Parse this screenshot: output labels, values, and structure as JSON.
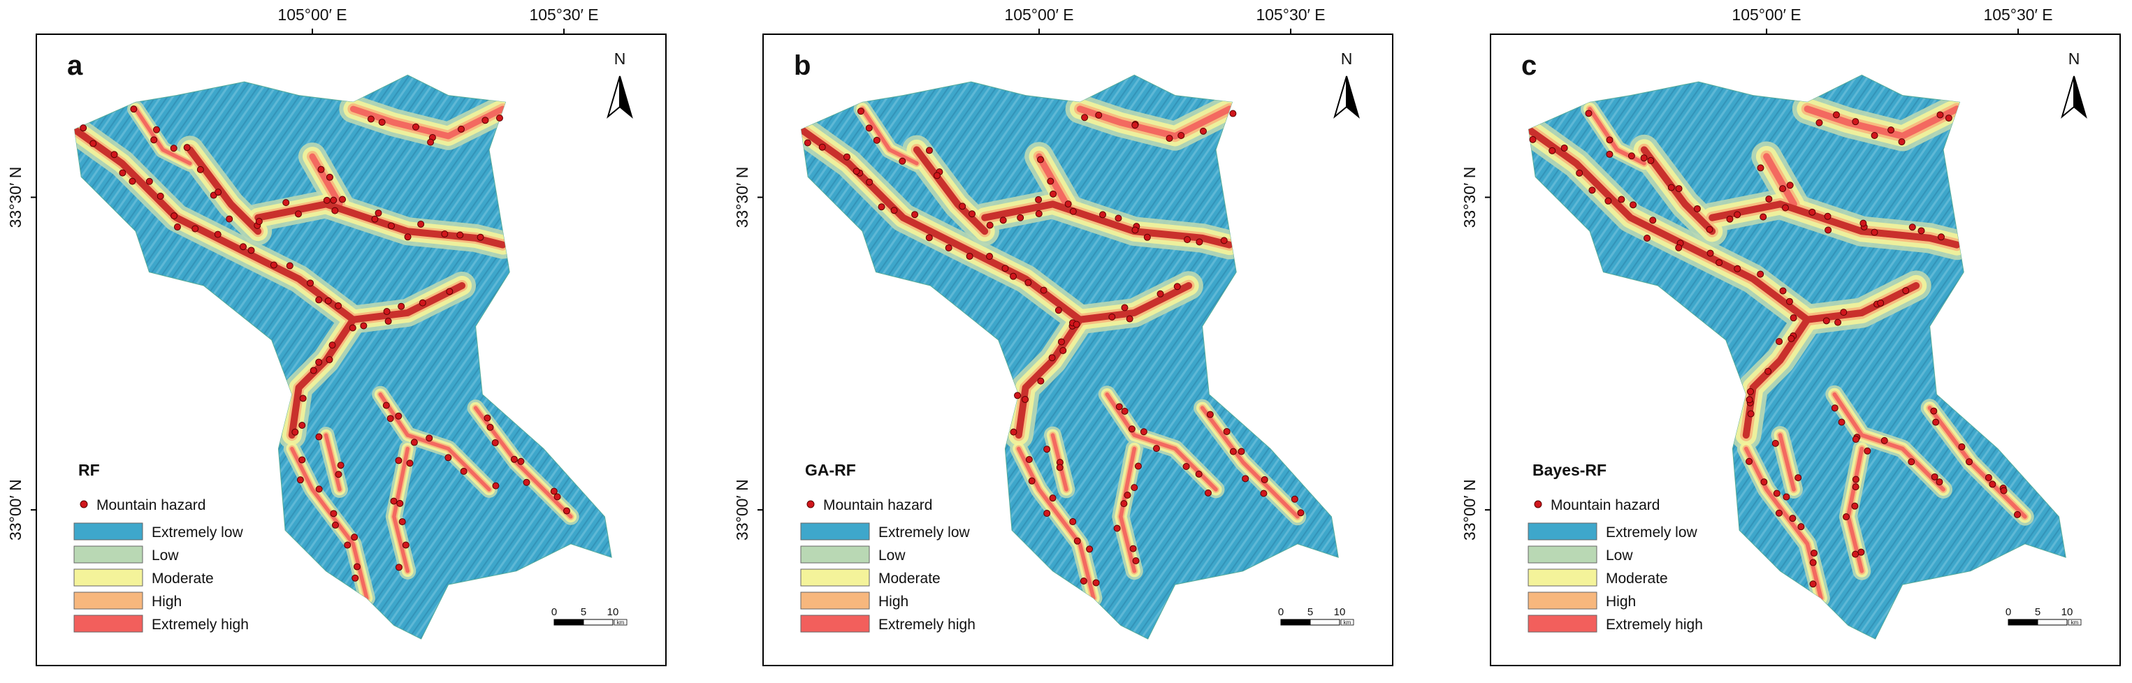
{
  "longitude_labels": [
    "105°00′ E",
    "105°30′ E"
  ],
  "latitude_labels": [
    "33°30′ N",
    "33°00′ N"
  ],
  "north_label": "N",
  "panels": [
    {
      "letter": "a",
      "model": "RF"
    },
    {
      "letter": "b",
      "model": "GA-RF"
    },
    {
      "letter": "c",
      "model": "Bayes-RF"
    }
  ],
  "legend": {
    "hazard_label": "Mountain hazard",
    "classes": [
      {
        "label": "Extremely low",
        "color": "#3ea7cb"
      },
      {
        "label": "Low",
        "color": "#b9d8b4"
      },
      {
        "label": "Moderate",
        "color": "#f4f39a"
      },
      {
        "label": "High",
        "color": "#f7b77d"
      },
      {
        "label": "Extremely high",
        "color": "#f25f5c"
      }
    ]
  },
  "scale_bar": {
    "labels": [
      "0",
      "5",
      "10"
    ],
    "unit": "km"
  }
}
